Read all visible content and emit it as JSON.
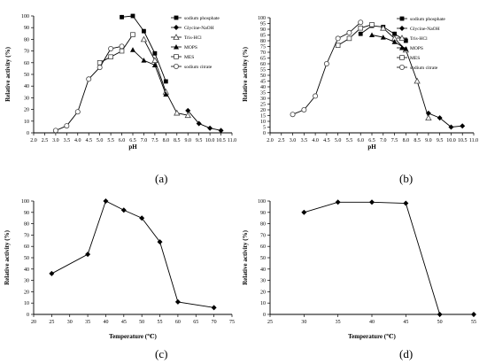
{
  "figure": {
    "captions": [
      "(a)",
      "(b)",
      "(c)",
      "(d)"
    ]
  },
  "chart_data": [
    {
      "type": "line",
      "xlabel": "pH",
      "ylabel": "Relative activity (%)",
      "xlim": [
        2.0,
        11.0
      ],
      "ylim": [
        0,
        100
      ],
      "x_ticks": [
        "2.0",
        "2.5",
        "3.0",
        "3.5",
        "4.0",
        "4.5",
        "5.0",
        "5.5",
        "6.0",
        "6.5",
        "7.0",
        "7.5",
        "8.0",
        "8.5",
        "9.0",
        "9.5",
        "10.0",
        "10.5",
        "11.0"
      ],
      "y_ticks": [
        "0",
        "10",
        "20",
        "30",
        "40",
        "50",
        "60",
        "70",
        "80",
        "90",
        "100"
      ],
      "legend_position": "top-right",
      "series": [
        {
          "name": "sodium phosphate",
          "marker": "square-filled",
          "x": [
            6.0,
            6.5,
            7.0,
            7.5,
            8.0
          ],
          "y": [
            99,
            100,
            87,
            68,
            44
          ]
        },
        {
          "name": "Glycine-NaOH",
          "marker": "diamond-filled",
          "x": [
            9.0,
            9.5,
            10.0,
            10.5
          ],
          "y": [
            19,
            8,
            4,
            2
          ]
        },
        {
          "name": "Tris-HCl",
          "marker": "triangle-open",
          "x": [
            7.0,
            7.5,
            8.0,
            8.5,
            9.0
          ],
          "y": [
            80,
            62,
            35,
            17,
            15
          ]
        },
        {
          "name": "MOPS",
          "marker": "triangle-filled",
          "x": [
            6.5,
            7.0,
            7.5,
            8.0
          ],
          "y": [
            71,
            62,
            58,
            33
          ]
        },
        {
          "name": "MES",
          "marker": "square-open",
          "x": [
            5.0,
            5.5,
            6.0,
            6.5
          ],
          "y": [
            60,
            65,
            70,
            84
          ]
        },
        {
          "name": "sodium citrate",
          "marker": "circle-open",
          "x": [
            3.0,
            3.5,
            4.0,
            4.5,
            5.0,
            5.5,
            6.0
          ],
          "y": [
            2,
            6,
            18,
            46,
            56,
            72,
            74
          ]
        }
      ]
    },
    {
      "type": "line",
      "xlabel": "pH",
      "ylabel": "Relative activity (%)",
      "xlim": [
        2.0,
        11.0
      ],
      "ylim": [
        0,
        100
      ],
      "x_ticks": [
        "2.0",
        "2.5",
        "3.0",
        "3.5",
        "4.0",
        "4.5",
        "5.0",
        "5.5",
        "6.0",
        "6.5",
        "7.0",
        "7.5",
        "8.0",
        "8.5",
        "9.0",
        "9.5",
        "10.0",
        "10.5",
        "11.0"
      ],
      "y_ticks": [
        "0",
        "5",
        "10",
        "15",
        "20",
        "25",
        "30",
        "35",
        "40",
        "45",
        "50",
        "55",
        "60",
        "65",
        "70",
        "75",
        "80",
        "85",
        "90",
        "95",
        "100"
      ],
      "legend_position": "top-right",
      "series": [
        {
          "name": "sodium phosphate",
          "marker": "square-filled",
          "x": [
            6.0,
            6.5,
            7.0,
            7.5,
            8.0
          ],
          "y": [
            86,
            93,
            92,
            86,
            80
          ]
        },
        {
          "name": "Glycine-NaOH",
          "marker": "diamond-filled",
          "x": [
            9.0,
            9.5,
            10.0,
            10.5
          ],
          "y": [
            17,
            13,
            5,
            6
          ]
        },
        {
          "name": "Tris-HCl",
          "marker": "triangle-open",
          "x": [
            7.0,
            7.5,
            8.0,
            8.5,
            9.0
          ],
          "y": [
            91,
            82,
            72,
            45,
            13
          ]
        },
        {
          "name": "MOPS",
          "marker": "triangle-filled",
          "x": [
            6.5,
            7.0,
            7.5,
            8.0
          ],
          "y": [
            85,
            83,
            79,
            73
          ]
        },
        {
          "name": "MES",
          "marker": "square-open",
          "x": [
            5.0,
            5.5,
            6.0,
            6.5
          ],
          "y": [
            76,
            82,
            91,
            94
          ]
        },
        {
          "name": "sodium citrate",
          "marker": "circle-open",
          "x": [
            3.0,
            3.5,
            4.0,
            4.5,
            5.0,
            5.5,
            6.0
          ],
          "y": [
            16,
            20,
            32,
            60,
            82,
            87,
            96
          ]
        }
      ]
    },
    {
      "type": "line",
      "xlabel": "Temperature (℃)",
      "ylabel": "Relative activity (%)",
      "xlim": [
        20,
        75
      ],
      "ylim": [
        0,
        100
      ],
      "x_ticks": [
        "20",
        "25",
        "30",
        "35",
        "40",
        "45",
        "50",
        "55",
        "60",
        "65",
        "70",
        "75"
      ],
      "y_ticks": [
        "0",
        "10",
        "20",
        "30",
        "40",
        "50",
        "60",
        "70",
        "80",
        "90",
        "100"
      ],
      "series": [
        {
          "name": "",
          "marker": "diamond-filled",
          "x": [
            25,
            35,
            40,
            45,
            50,
            55,
            60,
            70
          ],
          "y": [
            36,
            53,
            100,
            92,
            85,
            64,
            11,
            6
          ]
        }
      ]
    },
    {
      "type": "line",
      "xlabel": "Temperature (℃)",
      "ylabel": "Relative activity (%)",
      "xlim": [
        25,
        55
      ],
      "ylim": [
        0,
        100
      ],
      "x_ticks": [
        "25",
        "30",
        "35",
        "40",
        "45",
        "50",
        "55"
      ],
      "y_ticks": [
        "0",
        "10",
        "20",
        "30",
        "40",
        "50",
        "60",
        "70",
        "80",
        "90",
        "100"
      ],
      "series": [
        {
          "name": "",
          "marker": "diamond-filled",
          "x": [
            30,
            35,
            40,
            45,
            50,
            55
          ],
          "y": [
            90,
            99,
            99,
            98,
            0,
            0
          ]
        }
      ]
    }
  ]
}
